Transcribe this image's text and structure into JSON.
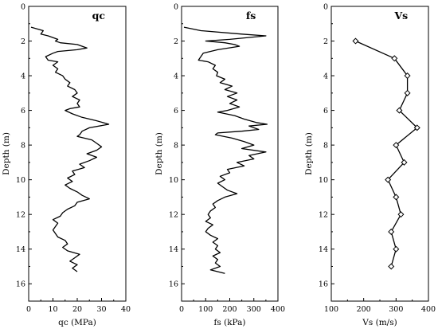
{
  "chart_data": [
    {
      "type": "line",
      "title": "qc",
      "xlabel": "qc (MPa)",
      "ylabel": "Depth (m)",
      "xlim": [
        0,
        40
      ],
      "ylim": [
        0,
        17
      ],
      "y_inverted": true,
      "xticks": [
        0,
        10,
        20,
        30,
        40
      ],
      "yticks": [
        0,
        2,
        4,
        6,
        8,
        10,
        12,
        14,
        16
      ],
      "marker": "none",
      "points": [
        [
          1,
          1.2
        ],
        [
          6,
          1.4
        ],
        [
          5,
          1.6
        ],
        [
          8,
          1.7
        ],
        [
          12,
          1.9
        ],
        [
          11,
          2.0
        ],
        [
          13,
          2.1
        ],
        [
          20,
          2.2
        ],
        [
          24,
          2.4
        ],
        [
          20,
          2.5
        ],
        [
          12,
          2.6
        ],
        [
          10,
          2.7
        ],
        [
          7,
          2.9
        ],
        [
          8,
          3.1
        ],
        [
          12,
          3.2
        ],
        [
          10,
          3.4
        ],
        [
          12,
          3.6
        ],
        [
          11,
          3.8
        ],
        [
          14,
          4.0
        ],
        [
          15,
          4.2
        ],
        [
          17,
          4.4
        ],
        [
          16,
          4.6
        ],
        [
          19,
          4.8
        ],
        [
          20,
          5.0
        ],
        [
          18,
          5.2
        ],
        [
          21,
          5.4
        ],
        [
          20,
          5.6
        ],
        [
          21,
          5.8
        ],
        [
          17,
          5.9
        ],
        [
          15,
          6.0
        ],
        [
          18,
          6.2
        ],
        [
          22,
          6.4
        ],
        [
          28,
          6.6
        ],
        [
          33,
          6.8
        ],
        [
          25,
          7.0
        ],
        [
          22,
          7.2
        ],
        [
          21,
          7.4
        ],
        [
          20,
          7.5
        ],
        [
          26,
          7.7
        ],
        [
          28,
          7.9
        ],
        [
          30,
          8.1
        ],
        [
          28,
          8.3
        ],
        [
          24,
          8.5
        ],
        [
          28,
          8.7
        ],
        [
          25,
          8.9
        ],
        [
          21,
          9.1
        ],
        [
          23,
          9.3
        ],
        [
          18,
          9.5
        ],
        [
          19,
          9.7
        ],
        [
          16,
          9.9
        ],
        [
          18,
          10.1
        ],
        [
          15,
          10.3
        ],
        [
          17,
          10.5
        ],
        [
          20,
          10.7
        ],
        [
          22,
          10.9
        ],
        [
          25,
          11.1
        ],
        [
          20,
          11.3
        ],
        [
          19,
          11.5
        ],
        [
          16,
          11.7
        ],
        [
          14,
          11.9
        ],
        [
          13,
          12.1
        ],
        [
          10,
          12.3
        ],
        [
          12,
          12.5
        ],
        [
          11,
          12.7
        ],
        [
          10,
          12.9
        ],
        [
          11,
          13.1
        ],
        [
          12,
          13.3
        ],
        [
          15,
          13.5
        ],
        [
          16,
          13.7
        ],
        [
          14,
          13.9
        ],
        [
          16,
          14.1
        ],
        [
          21,
          14.3
        ],
        [
          19,
          14.5
        ],
        [
          17,
          14.7
        ],
        [
          20,
          14.9
        ],
        [
          18,
          15.1
        ],
        [
          20,
          15.3
        ]
      ]
    },
    {
      "type": "line",
      "title": "fs",
      "xlabel": "fs (kPa)",
      "ylabel": "Depth (m)",
      "xlim": [
        0,
        400
      ],
      "ylim": [
        0,
        17
      ],
      "y_inverted": true,
      "xticks": [
        0,
        100,
        200,
        300,
        400
      ],
      "yticks": [
        0,
        2,
        4,
        6,
        8,
        10,
        12,
        14,
        16
      ],
      "marker": "none",
      "points": [
        [
          10,
          1.2
        ],
        [
          80,
          1.4
        ],
        [
          250,
          1.6
        ],
        [
          350,
          1.7
        ],
        [
          200,
          1.9
        ],
        [
          100,
          2.0
        ],
        [
          180,
          2.1
        ],
        [
          220,
          2.2
        ],
        [
          240,
          2.3
        ],
        [
          150,
          2.5
        ],
        [
          90,
          2.7
        ],
        [
          80,
          2.9
        ],
        [
          70,
          3.1
        ],
        [
          110,
          3.2
        ],
        [
          140,
          3.4
        ],
        [
          130,
          3.6
        ],
        [
          150,
          3.8
        ],
        [
          145,
          4.0
        ],
        [
          180,
          4.2
        ],
        [
          160,
          4.4
        ],
        [
          210,
          4.6
        ],
        [
          180,
          4.8
        ],
        [
          230,
          5.0
        ],
        [
          190,
          5.2
        ],
        [
          230,
          5.4
        ],
        [
          200,
          5.6
        ],
        [
          240,
          5.8
        ],
        [
          190,
          6.0
        ],
        [
          150,
          6.1
        ],
        [
          220,
          6.3
        ],
        [
          260,
          6.5
        ],
        [
          310,
          6.7
        ],
        [
          355,
          6.8
        ],
        [
          280,
          6.9
        ],
        [
          320,
          7.1
        ],
        [
          250,
          7.2
        ],
        [
          150,
          7.3
        ],
        [
          140,
          7.4
        ],
        [
          210,
          7.6
        ],
        [
          260,
          7.8
        ],
        [
          300,
          8.0
        ],
        [
          250,
          8.2
        ],
        [
          350,
          8.4
        ],
        [
          280,
          8.6
        ],
        [
          300,
          8.8
        ],
        [
          230,
          9.0
        ],
        [
          260,
          9.2
        ],
        [
          190,
          9.4
        ],
        [
          200,
          9.6
        ],
        [
          160,
          9.8
        ],
        [
          180,
          10.0
        ],
        [
          150,
          10.2
        ],
        [
          170,
          10.4
        ],
        [
          190,
          10.6
        ],
        [
          230,
          10.8
        ],
        [
          180,
          11.0
        ],
        [
          150,
          11.2
        ],
        [
          130,
          11.4
        ],
        [
          140,
          11.6
        ],
        [
          120,
          11.8
        ],
        [
          110,
          12.0
        ],
        [
          120,
          12.2
        ],
        [
          100,
          12.4
        ],
        [
          130,
          12.6
        ],
        [
          110,
          12.8
        ],
        [
          100,
          13.0
        ],
        [
          120,
          13.2
        ],
        [
          150,
          13.4
        ],
        [
          130,
          13.6
        ],
        [
          150,
          13.8
        ],
        [
          140,
          14.0
        ],
        [
          160,
          14.2
        ],
        [
          130,
          14.4
        ],
        [
          150,
          14.6
        ],
        [
          140,
          14.8
        ],
        [
          160,
          15.0
        ],
        [
          120,
          15.2
        ],
        [
          180,
          15.4
        ]
      ]
    },
    {
      "type": "line",
      "title": "Vs",
      "xlabel": "Vs (m/s)",
      "ylabel": "Depth (m)",
      "xlim": [
        100,
        400
      ],
      "ylim": [
        0,
        17
      ],
      "y_inverted": true,
      "xticks": [
        100,
        200,
        300,
        400
      ],
      "yticks": [
        0,
        2,
        4,
        6,
        8,
        10,
        12,
        14,
        16
      ],
      "marker": "diamond",
      "points": [
        [
          175,
          2
        ],
        [
          295,
          3
        ],
        [
          335,
          4
        ],
        [
          335,
          5
        ],
        [
          310,
          6
        ],
        [
          365,
          7
        ],
        [
          300,
          8
        ],
        [
          325,
          9
        ],
        [
          275,
          10
        ],
        [
          300,
          11
        ],
        [
          315,
          12
        ],
        [
          285,
          13
        ],
        [
          300,
          14
        ],
        [
          285,
          15
        ]
      ]
    }
  ]
}
